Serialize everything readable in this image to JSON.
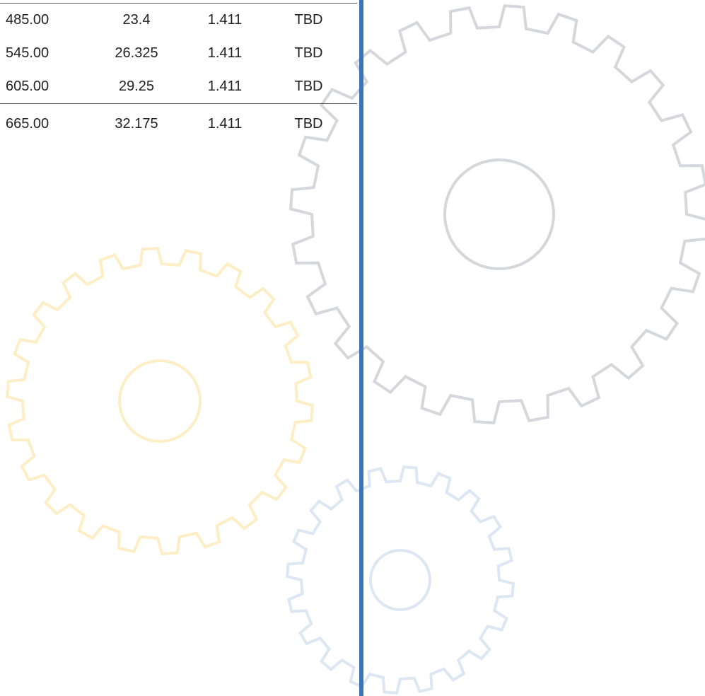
{
  "table": {
    "rows": [
      [
        "485.00",
        "23.4",
        "1.411",
        "TBD"
      ],
      [
        "545.00",
        "26.325",
        "1.411",
        "TBD"
      ],
      [
        "605.00",
        "29.25",
        "1.411",
        "TBD"
      ],
      [
        "665.00",
        "32.175",
        "1.411",
        "TBD"
      ]
    ]
  }
}
